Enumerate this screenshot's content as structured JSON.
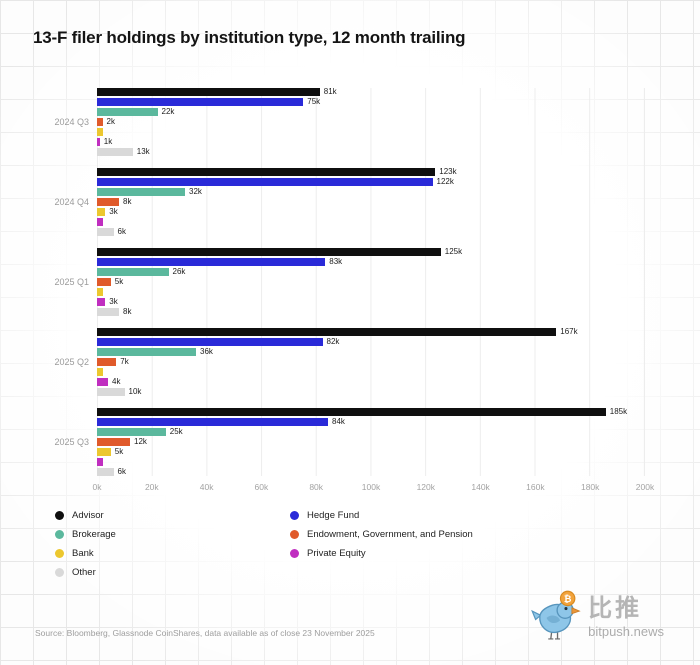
{
  "chart_data": {
    "type": "bar",
    "orientation": "horizontal",
    "title": "13-F filer holdings by institution type, 12 month trailing",
    "categories": [
      "2024 Q3",
      "2024 Q4",
      "2025 Q1",
      "2025 Q2",
      "2025 Q3"
    ],
    "xlim": [
      0,
      200
    ],
    "x_ticks": [
      "0k",
      "20k",
      "40k",
      "60k",
      "80k",
      "100k",
      "120k",
      "140k",
      "160k",
      "180k",
      "200k"
    ],
    "value_unit": "k",
    "grid": "vertical",
    "legend_position": "bottom",
    "series": [
      {
        "name": "Advisor",
        "color": "#0f0f0f",
        "values": [
          81,
          123,
          125,
          167,
          185
        ],
        "labels": [
          "81k",
          "123k",
          "125k",
          "167k",
          "185k"
        ]
      },
      {
        "name": "Hedge Fund",
        "color": "#2a2ad8",
        "values": [
          75,
          122,
          83,
          82,
          84
        ],
        "labels": [
          "75k",
          "122k",
          "83k",
          "82k",
          "84k"
        ]
      },
      {
        "name": "Brokerage",
        "color": "#5bb89d",
        "values": [
          22,
          32,
          26,
          36,
          25
        ],
        "labels": [
          "22k",
          "32k",
          "26k",
          "36k",
          "25k"
        ]
      },
      {
        "name": "Endowment, Government, and Pension",
        "color": "#e05a2b",
        "values": [
          2,
          8,
          5,
          7,
          12
        ],
        "labels": [
          "2k",
          "8k",
          "5k",
          "7k",
          "12k"
        ]
      },
      {
        "name": "Bank",
        "color": "#ecc72e",
        "values": [
          2,
          3,
          2,
          2,
          5
        ],
        "labels": [
          "",
          "3k",
          "",
          "",
          "5k"
        ]
      },
      {
        "name": "Private Equity",
        "color": "#c02ec0",
        "values": [
          1,
          2,
          3,
          4,
          2
        ],
        "labels": [
          "1k",
          "",
          "3k",
          "4k",
          ""
        ]
      },
      {
        "name": "Other",
        "color": "#d9d9d9",
        "values": [
          13,
          6,
          8,
          10,
          6
        ],
        "labels": [
          "13k",
          "6k",
          "8k",
          "10k",
          "6k"
        ]
      }
    ]
  },
  "legend": {
    "columns": [
      [
        "Advisor",
        "Brokerage",
        "Bank",
        "Other"
      ],
      [
        "Hedge Fund",
        "Endowment, Government, and Pension",
        "Private Equity"
      ]
    ]
  },
  "source_note": "Source: Bloomberg, Glassnode CoinShares, data available as of close 23 November 2025",
  "watermark": {
    "brand_cn": "比推",
    "brand_domain": "bitpush.news",
    "coin_symbol": "₿"
  }
}
